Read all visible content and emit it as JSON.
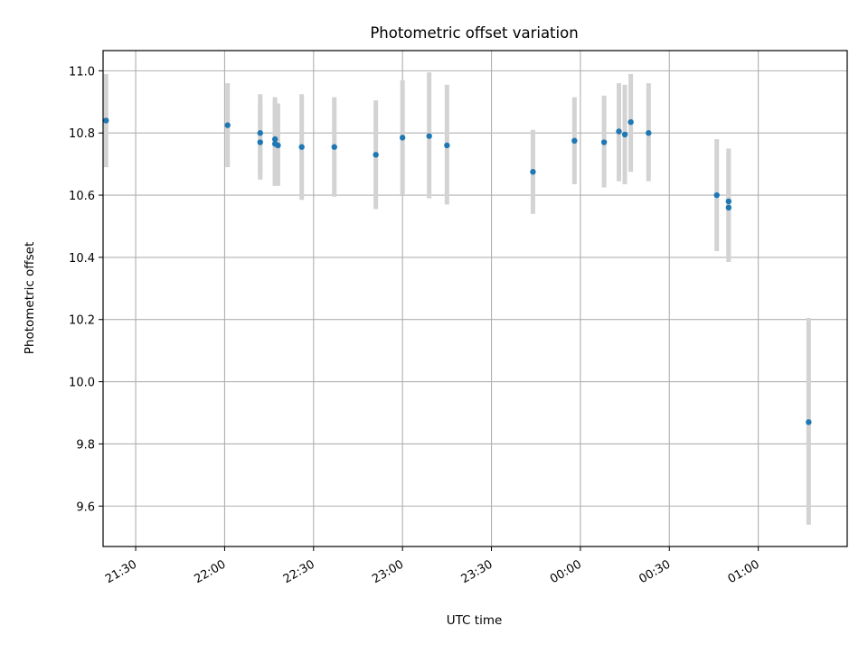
{
  "chart_data": {
    "type": "scatter",
    "title": "Photometric offset variation",
    "xlabel": "UTC time",
    "ylabel": "Photometric offset",
    "grid": true,
    "xlim": [
      "21:19",
      "01:30"
    ],
    "ylim": [
      9.47,
      11.065
    ],
    "x_ticks": [
      "21:30",
      "22:00",
      "22:30",
      "23:00",
      "23:30",
      "00:00",
      "00:30",
      "01:00"
    ],
    "y_ticks": [
      "9.6",
      "9.8",
      "10.0",
      "10.2",
      "10.4",
      "10.6",
      "10.8",
      "11.0"
    ],
    "colors": {
      "point": "#1f77b4",
      "errorbar": "#d3d3d3",
      "grid": "#b0b0b0"
    },
    "points": [
      {
        "x": "21:20",
        "y": 10.84,
        "err_low": 10.69,
        "err_high": 10.99
      },
      {
        "x": "22:01",
        "y": 10.825,
        "err_low": 10.69,
        "err_high": 10.96
      },
      {
        "x": "22:12",
        "y": 10.8,
        "err_low": 10.67,
        "err_high": 10.925
      },
      {
        "x": "22:12",
        "y": 10.77,
        "err_low": 10.65,
        "err_high": 10.89
      },
      {
        "x": "22:17",
        "y": 10.78,
        "err_low": 10.63,
        "err_high": 10.915
      },
      {
        "x": "22:17",
        "y": 10.765,
        "err_low": 10.63,
        "err_high": 10.9
      },
      {
        "x": "22:18",
        "y": 10.76,
        "err_low": 10.63,
        "err_high": 10.895
      },
      {
        "x": "22:26",
        "y": 10.755,
        "err_low": 10.585,
        "err_high": 10.925
      },
      {
        "x": "22:37",
        "y": 10.755,
        "err_low": 10.595,
        "err_high": 10.915
      },
      {
        "x": "22:51",
        "y": 10.73,
        "err_low": 10.555,
        "err_high": 10.905
      },
      {
        "x": "23:00",
        "y": 10.785,
        "err_low": 10.6,
        "err_high": 10.97
      },
      {
        "x": "23:09",
        "y": 10.79,
        "err_low": 10.59,
        "err_high": 10.995
      },
      {
        "x": "23:15",
        "y": 10.76,
        "err_low": 10.57,
        "err_high": 10.955
      },
      {
        "x": "23:44",
        "y": 10.675,
        "err_low": 10.54,
        "err_high": 10.81
      },
      {
        "x": "23:58",
        "y": 10.775,
        "err_low": 10.635,
        "err_high": 10.915
      },
      {
        "x": "00:08",
        "y": 10.77,
        "err_low": 10.625,
        "err_high": 10.92
      },
      {
        "x": "00:13",
        "y": 10.805,
        "err_low": 10.645,
        "err_high": 10.96
      },
      {
        "x": "00:15",
        "y": 10.795,
        "err_low": 10.635,
        "err_high": 10.955
      },
      {
        "x": "00:17",
        "y": 10.835,
        "err_low": 10.675,
        "err_high": 10.99
      },
      {
        "x": "00:23",
        "y": 10.8,
        "err_low": 10.645,
        "err_high": 10.96
      },
      {
        "x": "00:46",
        "y": 10.6,
        "err_low": 10.42,
        "err_high": 10.78
      },
      {
        "x": "00:50",
        "y": 10.58,
        "err_low": 10.41,
        "err_high": 10.75
      },
      {
        "x": "00:50",
        "y": 10.56,
        "err_low": 10.385,
        "err_high": 10.73
      },
      {
        "x": "01:17",
        "y": 9.87,
        "err_low": 9.54,
        "err_high": 10.205
      }
    ]
  }
}
